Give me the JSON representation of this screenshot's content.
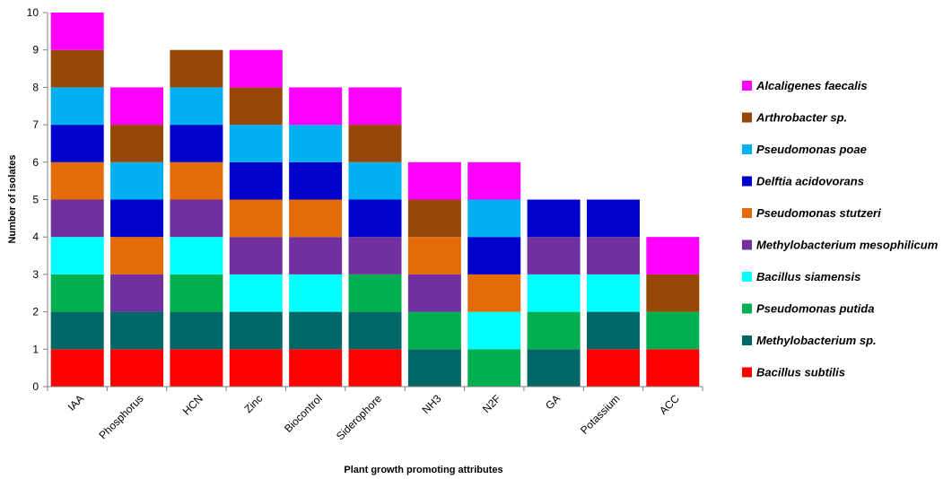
{
  "chart_data": {
    "type": "bar",
    "stacked": true,
    "xlabel": "Plant growth promoting attributes",
    "ylabel": "Number of isolates",
    "ylim": [
      0,
      10
    ],
    "yticks": [
      "0",
      "1",
      "2",
      "3",
      "4",
      "5",
      "6",
      "7",
      "8",
      "9",
      "10"
    ],
    "grid": false,
    "legend_position": "right",
    "categories": [
      "IAA",
      "Phosphorus",
      "HCN",
      "Zinc",
      "Biocontrol",
      "Siderophore",
      "NH3",
      "N2F",
      "GA",
      "Potassium",
      "ACC"
    ],
    "series": [
      {
        "name": "Bacillus subtilis",
        "color": "#FF0000",
        "values": [
          1,
          1,
          1,
          1,
          1,
          1,
          0,
          0,
          0,
          1,
          1
        ]
      },
      {
        "name": "Methylobacterium sp.",
        "color": "#006666",
        "values": [
          1,
          1,
          1,
          1,
          1,
          1,
          1,
          0,
          1,
          1,
          0
        ]
      },
      {
        "name": "Pseudomonas putida",
        "color": "#00B050",
        "values": [
          1,
          0,
          1,
          0,
          0,
          1,
          1,
          1,
          1,
          0,
          1
        ]
      },
      {
        "name": "Bacillus siamensis",
        "color": "#00FFFF",
        "values": [
          1,
          0,
          1,
          1,
          1,
          0,
          0,
          1,
          1,
          1,
          0
        ]
      },
      {
        "name": "Methylobacterium mesophilicum",
        "color": "#7030A0",
        "values": [
          1,
          1,
          1,
          1,
          1,
          1,
          1,
          0,
          1,
          1,
          0
        ]
      },
      {
        "name": "Pseudomonas stutzeri",
        "color": "#E36C09",
        "values": [
          1,
          1,
          1,
          1,
          1,
          0,
          1,
          1,
          0,
          0,
          0
        ]
      },
      {
        "name": "Delftia acidovorans",
        "color": "#0000CC",
        "values": [
          1,
          1,
          1,
          1,
          1,
          1,
          0,
          1,
          1,
          1,
          0
        ]
      },
      {
        "name": "Pseudomonas poae",
        "color": "#00B0F0",
        "values": [
          1,
          1,
          1,
          1,
          1,
          1,
          0,
          1,
          0,
          0,
          0
        ]
      },
      {
        "name": "Arthrobacter sp.",
        "color": "#974706",
        "values": [
          1,
          1,
          1,
          1,
          0,
          1,
          1,
          0,
          0,
          0,
          1
        ]
      },
      {
        "name": "Alcaligenes faecalis",
        "color": "#FF00FF",
        "values": [
          1,
          1,
          0,
          1,
          1,
          1,
          1,
          1,
          0,
          0,
          1
        ]
      }
    ],
    "legend_order": [
      "Alcaligenes faecalis",
      "Arthrobacter sp.",
      "Pseudomonas poae",
      "Delftia acidovorans",
      "Pseudomonas stutzeri",
      "Methylobacterium mesophilicum",
      "Bacillus siamensis",
      "Pseudomonas putida",
      "Methylobacterium sp.",
      "Bacillus subtilis"
    ]
  }
}
